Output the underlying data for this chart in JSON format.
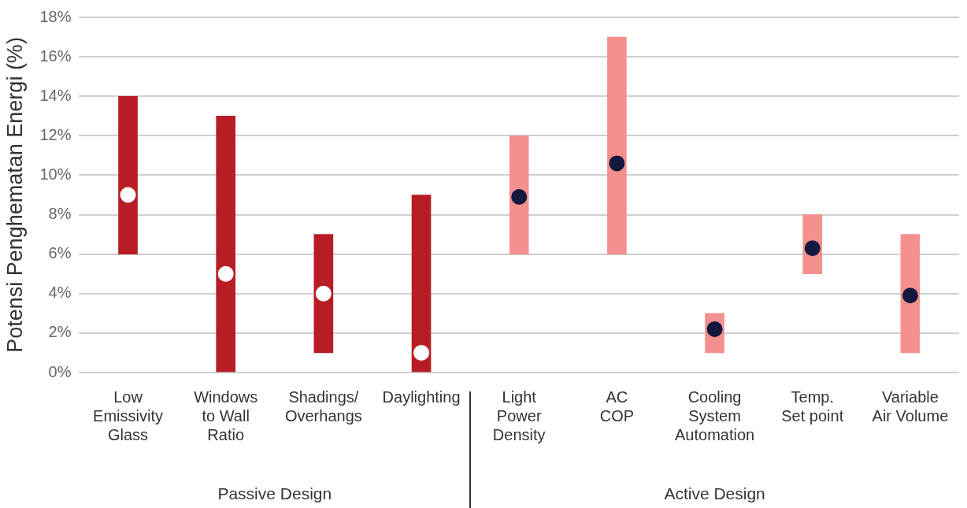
{
  "chart_data": {
    "type": "bar",
    "ylabel": "Potensi Penghematan Energi (%)",
    "categories": [
      "Low\nEmissivity\nGlass",
      "Windows\nto Wall\nRatio",
      "Shadings/\nOverhangs",
      "Daylighting",
      "Light\nPower\nDensity",
      "AC\nCOP",
      "Cooling\nSystem\nAutomation",
      "Temp.\nSet point",
      "Variable\nAir Volume"
    ],
    "series": [
      {
        "values": [
          8,
          13,
          6,
          9,
          6,
          11,
          2,
          3,
          6
        ],
        "base": [
          6,
          0,
          1,
          0,
          6,
          6,
          1,
          5,
          1
        ],
        "colors": [
          "#b81d25",
          "#b81d25",
          "#b81d25",
          "#b81d25",
          "#f4908e",
          "#f4908e",
          "#f4908e",
          "#f4908e",
          "#f4908e"
        ]
      },
      {
        "type": "scatter",
        "x": [
          "Low\nEmissivity\nGlass",
          "Windows\nto Wall\nRatio",
          "Shadings/\nOverhangs",
          "Daylighting",
          "Light\nPower\nDensity",
          "AC\nCOP",
          "Cooling\nSystem\nAutomation",
          "Temp.\nSet point",
          "Variable\nAir Volume"
        ],
        "values": [
          9,
          5,
          4,
          1,
          8.9,
          10.6,
          2.2,
          6.3,
          3.9
        ],
        "colors": [
          "#ffffff",
          "#ffffff",
          "#ffffff",
          "#ffffff",
          "#15193f",
          "#15193f",
          "#15193f",
          "#15193f",
          "#15193f"
        ]
      }
    ],
    "ylim": [
      0,
      18
    ],
    "yticks": [
      {
        "value": 0,
        "label": "0%"
      },
      {
        "value": 2,
        "label": "2%"
      },
      {
        "value": 4,
        "label": "4%"
      },
      {
        "value": 6,
        "label": "6%"
      },
      {
        "value": 8,
        "label": "8%"
      },
      {
        "value": 10,
        "label": "10%"
      },
      {
        "value": 12,
        "label": "12%"
      },
      {
        "value": 14,
        "label": "14%"
      },
      {
        "value": 16,
        "label": "16%"
      },
      {
        "value": 18,
        "label": "18%"
      }
    ],
    "grid": "y",
    "legend": false,
    "marker": "circle",
    "annotations": [
      "Passive Design",
      "Active Design"
    ]
  }
}
